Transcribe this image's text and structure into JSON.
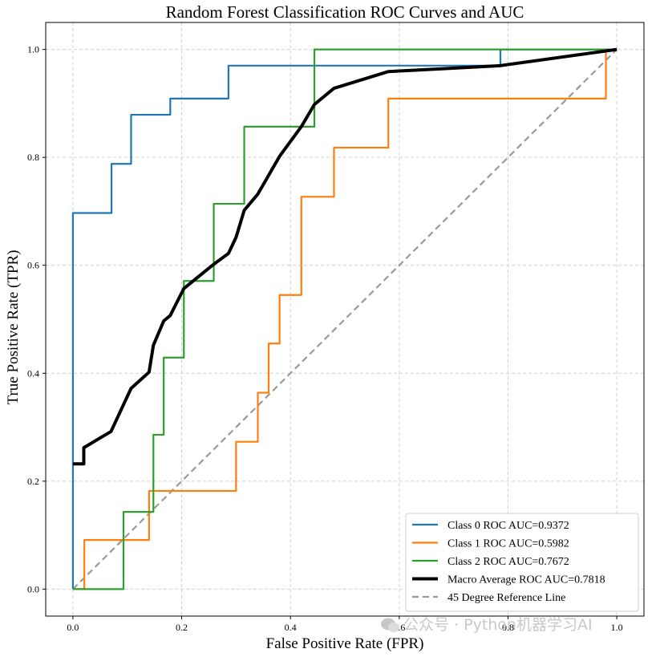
{
  "chart_data": {
    "type": "line",
    "title": "Random Forest Classification ROC Curves and AUC",
    "xlabel": "False Positive Rate (FPR)",
    "ylabel": "True Positive Rate (TPR)",
    "xlim": [
      -0.05,
      1.05
    ],
    "ylim": [
      -0.05,
      1.05
    ],
    "xticks": [
      "0.0",
      "0.2",
      "0.4",
      "0.6",
      "0.8",
      "1.0"
    ],
    "yticks": [
      "0.0",
      "0.2",
      "0.4",
      "0.6",
      "0.8",
      "1.0"
    ],
    "grid": true,
    "legend_position": "lower-right",
    "series": [
      {
        "name": "Class 0 ROC  AUC=0.9372",
        "color": "#1f77b4",
        "style": "solid",
        "x": [
          0,
          0,
          0.071,
          0.071,
          0.107,
          0.107,
          0.179,
          0.179,
          0.286,
          0.286,
          0.786,
          0.786,
          1.0
        ],
        "y": [
          0,
          0.697,
          0.697,
          0.788,
          0.788,
          0.879,
          0.879,
          0.909,
          0.909,
          0.97,
          0.97,
          1.0,
          1.0
        ]
      },
      {
        "name": "Class 1 ROC  AUC=0.5982",
        "color": "#ff7f0e",
        "style": "solid",
        "x": [
          0,
          0.021,
          0.021,
          0.14,
          0.14,
          0.3,
          0.3,
          0.34,
          0.34,
          0.36,
          0.36,
          0.38,
          0.38,
          0.42,
          0.42,
          0.48,
          0.48,
          0.58,
          0.58,
          0.98,
          0.98,
          1.0
        ],
        "y": [
          0,
          0,
          0.091,
          0.091,
          0.182,
          0.182,
          0.273,
          0.273,
          0.364,
          0.364,
          0.455,
          0.455,
          0.545,
          0.545,
          0.727,
          0.727,
          0.818,
          0.818,
          0.909,
          0.909,
          1.0,
          1.0
        ]
      },
      {
        "name": "Class 2 ROC  AUC=0.7672",
        "color": "#2ca02c",
        "style": "solid",
        "x": [
          0,
          0.093,
          0.093,
          0.148,
          0.148,
          0.167,
          0.167,
          0.204,
          0.204,
          0.259,
          0.259,
          0.315,
          0.315,
          0.444,
          0.444,
          1.0
        ],
        "y": [
          0,
          0,
          0.143,
          0.143,
          0.286,
          0.286,
          0.429,
          0.429,
          0.571,
          0.571,
          0.714,
          0.714,
          0.857,
          0.857,
          1.0,
          1.0
        ]
      },
      {
        "name": "Macro Average ROC  AUC=0.7818",
        "color": "#000000",
        "style": "bold",
        "x": [
          0,
          0.02,
          0.02,
          0.07,
          0.107,
          0.14,
          0.148,
          0.167,
          0.179,
          0.204,
          0.259,
          0.286,
          0.3,
          0.315,
          0.34,
          0.36,
          0.38,
          0.42,
          0.444,
          0.48,
          0.58,
          0.786,
          1.0
        ],
        "y": [
          0.232,
          0.232,
          0.262,
          0.292,
          0.372,
          0.402,
          0.452,
          0.497,
          0.507,
          0.557,
          0.602,
          0.622,
          0.652,
          0.702,
          0.732,
          0.767,
          0.802,
          0.857,
          0.898,
          0.928,
          0.959,
          0.97,
          1.0
        ]
      },
      {
        "name": "45 Degree Reference Line",
        "color": "#999999",
        "style": "dashed",
        "x": [
          0,
          1
        ],
        "y": [
          0,
          1
        ]
      }
    ]
  },
  "watermark": "公众号 · Python机器学习AI"
}
